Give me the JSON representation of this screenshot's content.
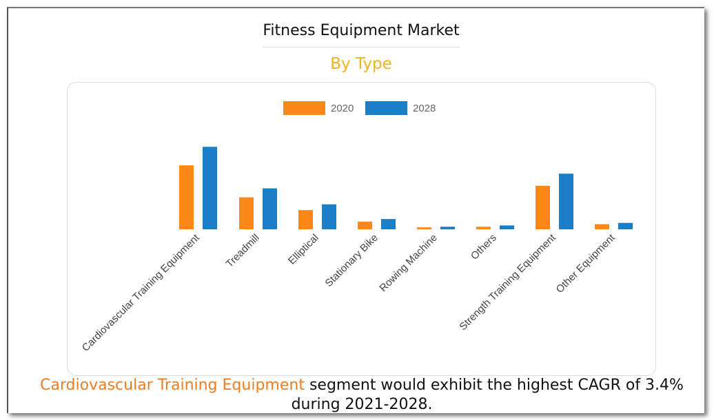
{
  "header": {
    "title": "Fitness Equipment Market",
    "subtitle": "By Type"
  },
  "footer": {
    "highlight": "Cardiovascular Training Equipment",
    "text_line1": " segment would exhibit the highest CAGR of 3.4%",
    "text_line2": "during 2021-2028."
  },
  "colors": {
    "series_2020": "#fb8817",
    "series_2028": "#1a7fc6",
    "subtitle": "#f0b323",
    "highlight": "#f07c21"
  },
  "chart_data": {
    "type": "bar",
    "title": "Fitness Equipment Market",
    "subtitle": "By Type",
    "categories": [
      "Cardiovascular Training Equipment",
      "Treadmill",
      "Elliptical",
      "Stationary Bike",
      "Rowing Machine",
      "Others",
      "Strength Training Equipment",
      "Other Equipment"
    ],
    "series": [
      {
        "name": "2020",
        "values": [
          100,
          50,
          30,
          12,
          3,
          4,
          68,
          8
        ]
      },
      {
        "name": "2028",
        "values": [
          129,
          64,
          39,
          16,
          4,
          6,
          87,
          10
        ]
      }
    ],
    "ylim": [
      0,
      140
    ],
    "grid": false,
    "axis_values_shown": false,
    "legend": "top-center",
    "xlabel": "",
    "ylabel": ""
  }
}
